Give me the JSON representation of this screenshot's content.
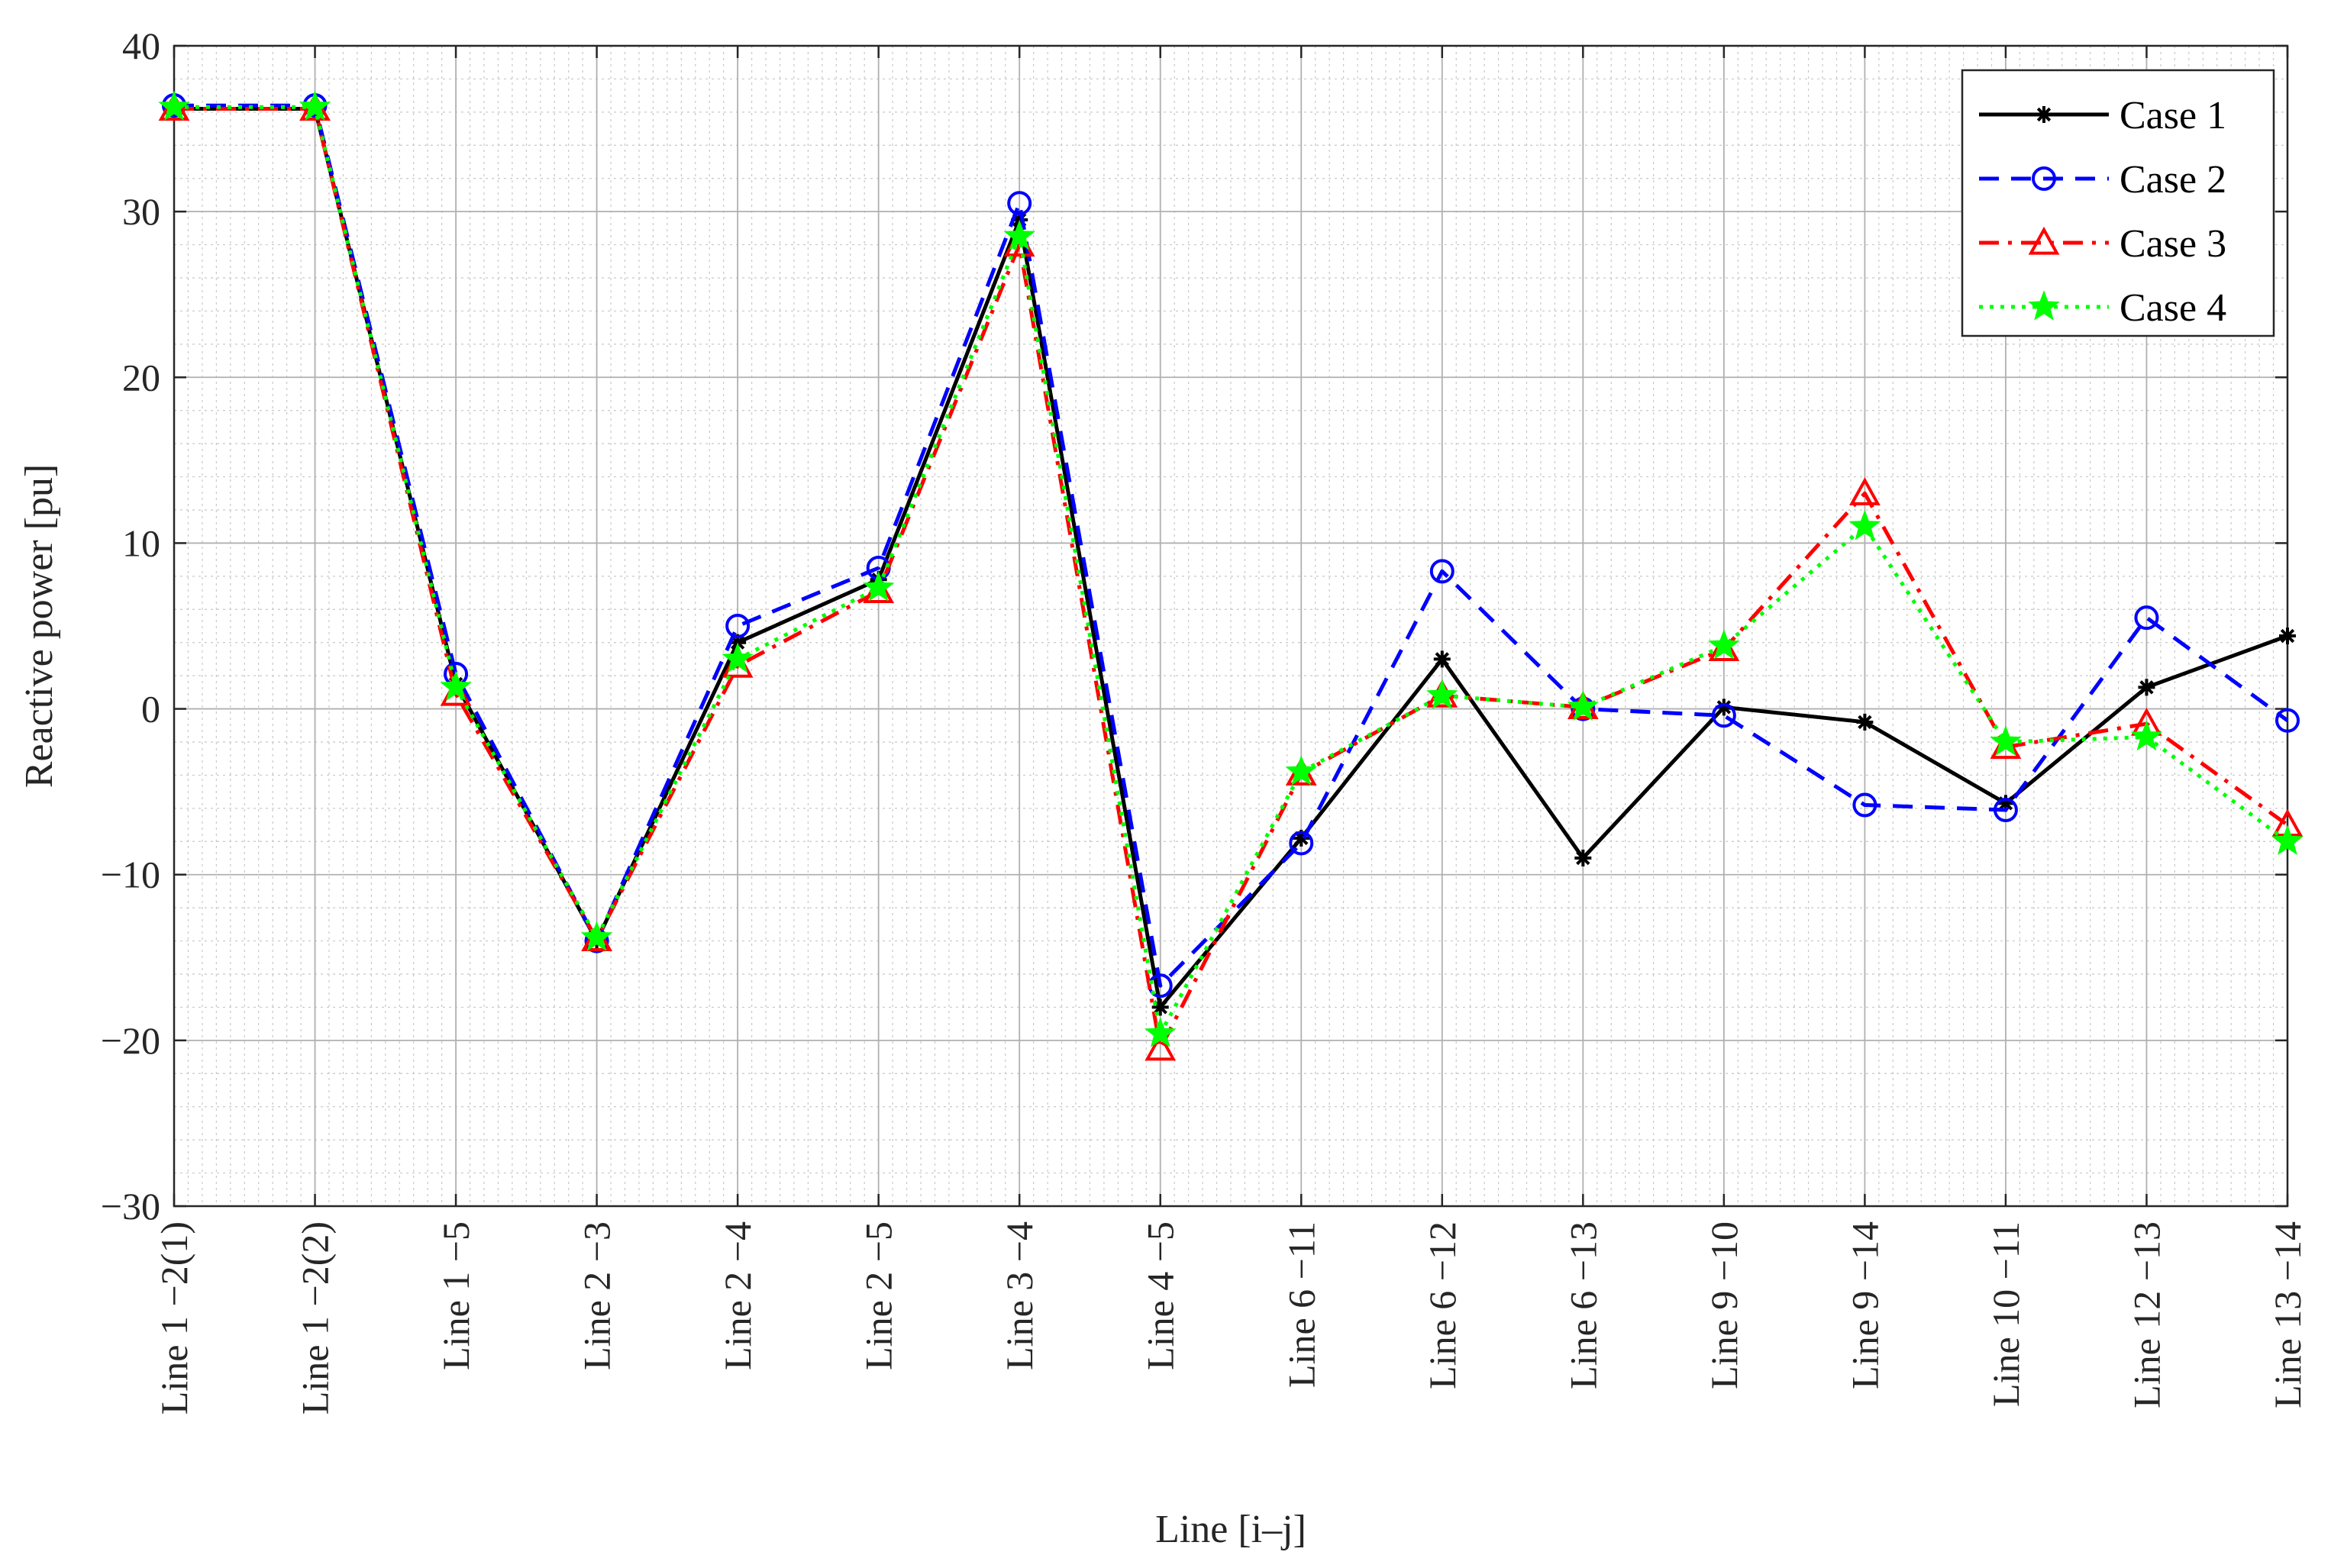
{
  "chart_data": {
    "type": "line",
    "xlabel": "Line [i–j]",
    "ylabel": "Reactive power [pu]",
    "ylim": [
      -30,
      40
    ],
    "yticks": [
      -30,
      -20,
      -10,
      0,
      10,
      20,
      30,
      40
    ],
    "ytick_labels": [
      "−30",
      "−20",
      "−10",
      "0",
      "10",
      "20",
      "30",
      "40"
    ],
    "categories": [
      "Line 1 −2(1)",
      "Line 1 −2(2)",
      "Line 1 −5",
      "Line 2 −3",
      "Line 2 −4",
      "Line 2 −5",
      "Line 3 −4",
      "Line 4 −5",
      "Line 6 −11",
      "Line 6 −12",
      "Line 6 −13",
      "Line 9 −10",
      "Line 9 −14",
      "Line 10 −11",
      "Line 12 −13",
      "Line 13 −14"
    ],
    "grid": true,
    "minor_grid": true,
    "legend_position": "top-right",
    "series": [
      {
        "name": "Case 1",
        "color": "#000000",
        "dash": "solid",
        "marker": "asterisk",
        "values": [
          36.2,
          36.2,
          1.5,
          -14.0,
          4.0,
          7.8,
          29.5,
          -18.0,
          -7.8,
          3.0,
          -9.0,
          0.1,
          -0.8,
          -5.7,
          1.3,
          4.4
        ]
      },
      {
        "name": "Case 2",
        "color": "#0000ff",
        "dash": "dashed",
        "marker": "circle",
        "values": [
          36.4,
          36.4,
          2.1,
          -14.0,
          5.0,
          8.5,
          30.5,
          -16.7,
          -8.1,
          8.3,
          0.0,
          -0.4,
          -5.8,
          -6.1,
          5.5,
          -0.7
        ]
      },
      {
        "name": "Case 3",
        "color": "#ff0000",
        "dash": "dashdot",
        "marker": "triangle",
        "values": [
          36.2,
          36.2,
          0.9,
          -13.9,
          2.6,
          7.1,
          28.0,
          -20.5,
          -3.9,
          0.8,
          0.1,
          3.6,
          13.0,
          -2.3,
          -0.9,
          -7.0
        ]
      },
      {
        "name": "Case 4",
        "color": "#00ff00",
        "dash": "dotted",
        "marker": "star",
        "values": [
          36.3,
          36.3,
          1.3,
          -13.8,
          3.0,
          7.3,
          28.5,
          -19.6,
          -3.8,
          0.8,
          0.1,
          3.8,
          11.0,
          -2.0,
          -1.7,
          -8.0
        ]
      }
    ]
  }
}
